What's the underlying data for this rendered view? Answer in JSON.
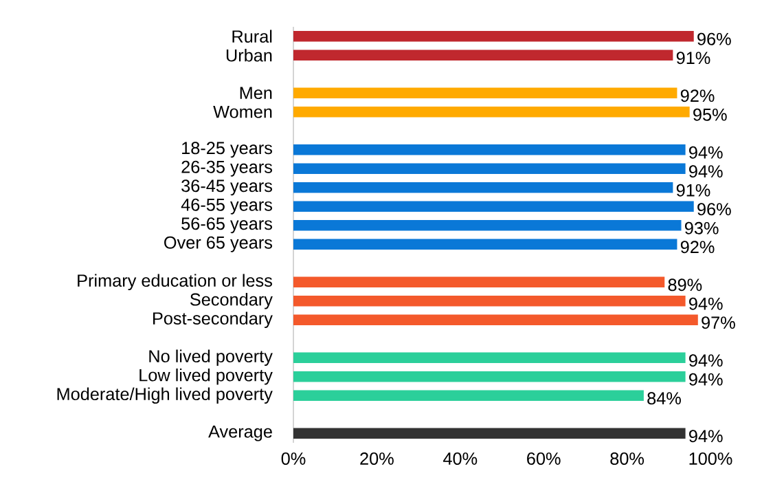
{
  "chart_data": {
    "type": "bar",
    "orientation": "horizontal",
    "categories": [
      "Rural",
      "Urban",
      null,
      "Men",
      "Women",
      null,
      "18-25 years",
      "26-35 years",
      "36-45 years",
      "46-55 years",
      "56-65 years",
      "Over 65 years",
      null,
      "Primary education or less",
      "Secondary",
      "Post-secondary",
      null,
      "No lived poverty",
      "Low lived poverty",
      "Moderate/High lived poverty",
      null,
      "Average"
    ],
    "values": [
      96,
      91,
      null,
      92,
      95,
      null,
      94,
      94,
      91,
      96,
      93,
      92,
      null,
      89,
      94,
      97,
      null,
      94,
      94,
      84,
      null,
      94
    ],
    "value_labels": [
      "96%",
      "91%",
      null,
      "92%",
      "95%",
      null,
      "94%",
      "94%",
      "91%",
      "96%",
      "93%",
      "92%",
      null,
      "89%",
      "94%",
      "97%",
      null,
      "94%",
      "94%",
      "84%",
      null,
      "94%"
    ],
    "colors": [
      "#c0282e",
      "#c0282e",
      null,
      "#ffaa00",
      "#ffaa00",
      null,
      "#0a78d7",
      "#0a78d7",
      "#0a78d7",
      "#0a78d7",
      "#0a78d7",
      "#0a78d7",
      null,
      "#f4592b",
      "#f4592b",
      "#f4592b",
      null,
      "#2bcf9a",
      "#2bcf9a",
      "#2bcf9a",
      null,
      "#333333"
    ],
    "xlim": [
      0,
      100
    ],
    "xticks": [
      {
        "value": 0,
        "label": "0%"
      },
      {
        "value": 20,
        "label": "20%"
      },
      {
        "value": 40,
        "label": "40%"
      },
      {
        "value": 60,
        "label": "60%"
      },
      {
        "value": 80,
        "label": "80%"
      },
      {
        "value": 100,
        "label": "100%"
      }
    ],
    "grid": false
  }
}
